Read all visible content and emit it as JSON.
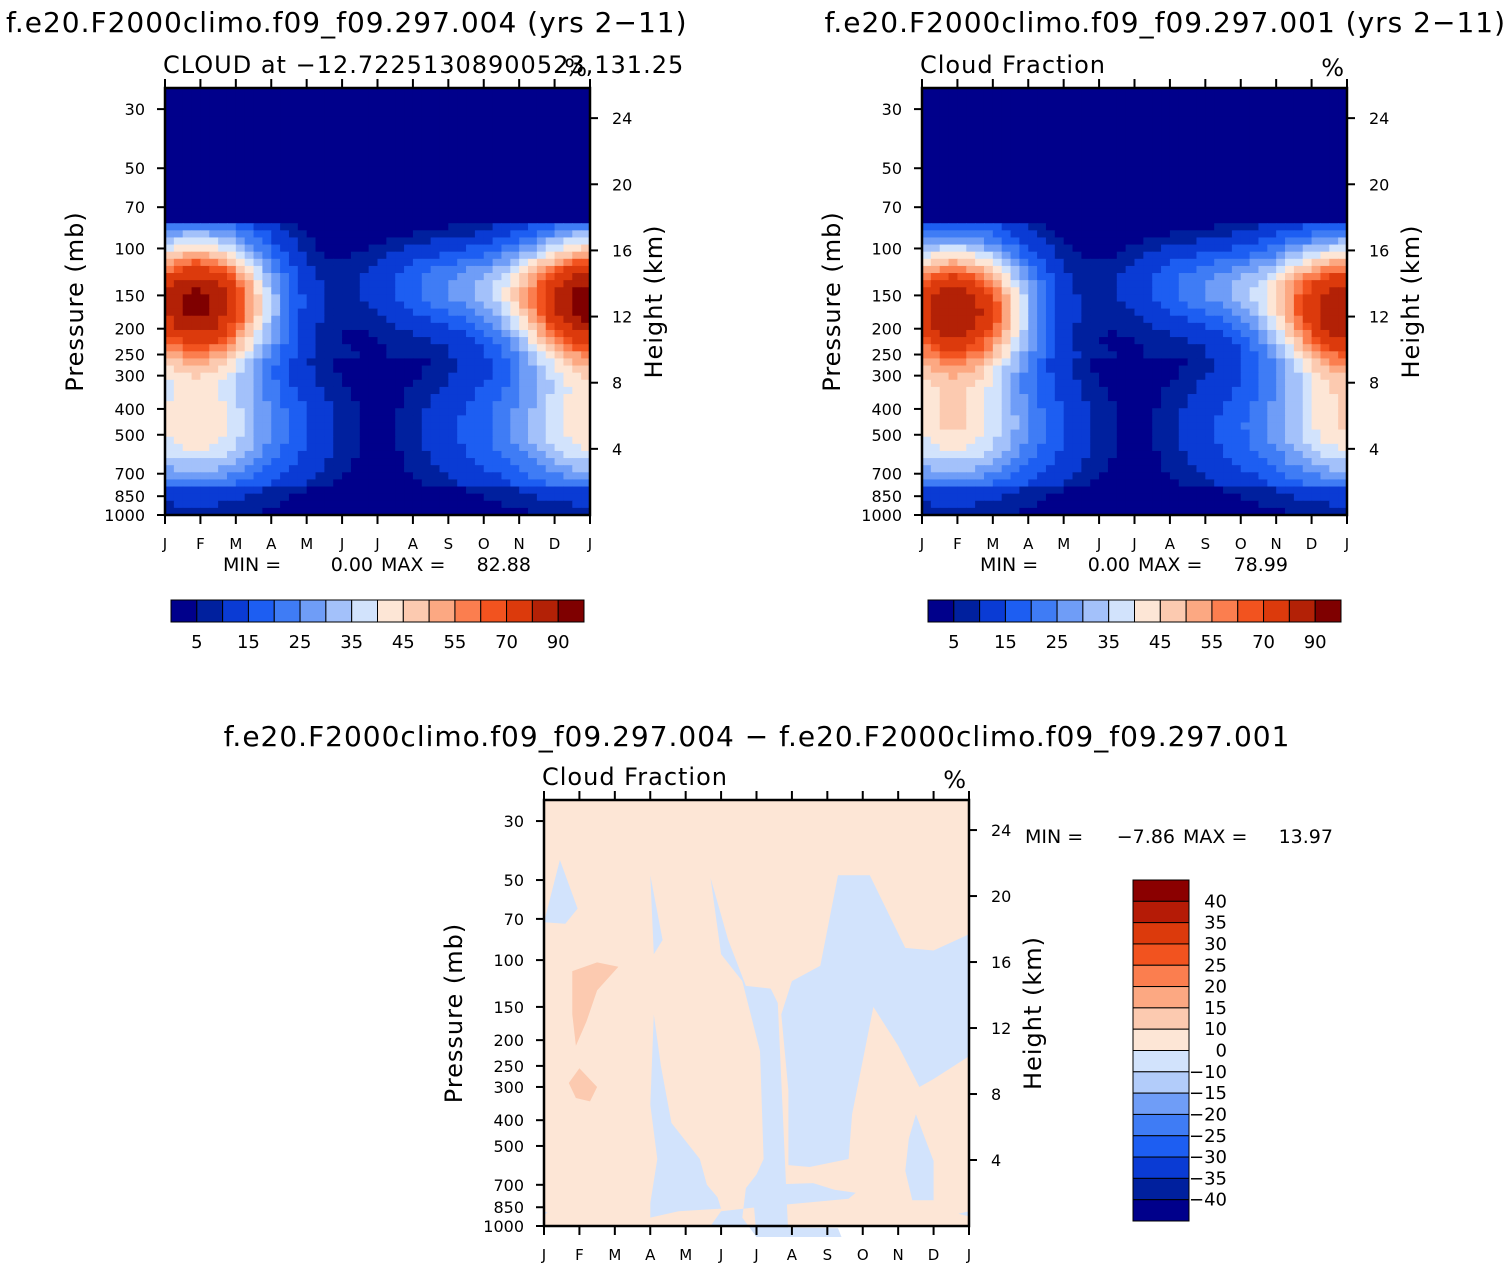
{
  "chart_data": [
    {
      "type": "heatmap",
      "suptitle": "f.e20.F2000climo.f09_f09.297.004 (yrs 2−11)",
      "title": "CLOUD at −12.72251308900523,131.25",
      "units": "%",
      "xlabel": "",
      "ylabel": "Pressure (mb)",
      "ylabel_right": "Height (km)",
      "x": [
        "J",
        "F",
        "M",
        "A",
        "M",
        "J",
        "J",
        "A",
        "S",
        "O",
        "N",
        "D",
        "J"
      ],
      "y_ticks": [
        30,
        50,
        70,
        100,
        150,
        200,
        250,
        300,
        400,
        500,
        700,
        850,
        1000
      ],
      "y_right_ticks": [
        24,
        20,
        16,
        12,
        8,
        4
      ],
      "ylim": [
        1000,
        25
      ],
      "stats": {
        "min_label": "MIN =",
        "min": "0.00",
        "max_label": "MAX =",
        "max": "82.88"
      },
      "colorbar": {
        "orientation": "horizontal",
        "labels": [
          "5",
          "15",
          "25",
          "35",
          "45",
          "55",
          "70",
          "90"
        ],
        "colors": [
          "#00008b",
          "#00209e",
          "#0a3bd4",
          "#1d5ef2",
          "#3f7cf5",
          "#6f9df7",
          "#a3c1fa",
          "#d2e3fc",
          "#fde6d6",
          "#fccab0",
          "#fca882",
          "#fb7e4f",
          "#f2531f",
          "#dc3a0c",
          "#b32106",
          "#7f0000"
        ]
      },
      "profile": {
        "peak_months": [
          1,
          12
        ],
        "peak_value": 82.88,
        "peak_p": 160
      }
    },
    {
      "type": "heatmap",
      "suptitle": "f.e20.F2000climo.f09_f09.297.001 (yrs 2−11)",
      "title": "Cloud Fraction",
      "units": "%",
      "xlabel": "",
      "ylabel": "Pressure (mb)",
      "ylabel_right": "Height (km)",
      "x": [
        "J",
        "F",
        "M",
        "A",
        "M",
        "J",
        "J",
        "A",
        "S",
        "O",
        "N",
        "D",
        "J"
      ],
      "y_ticks": [
        30,
        50,
        70,
        100,
        150,
        200,
        250,
        300,
        400,
        500,
        700,
        850,
        1000
      ],
      "y_right_ticks": [
        24,
        20,
        16,
        12,
        8,
        4
      ],
      "ylim": [
        1000,
        25
      ],
      "stats": {
        "min_label": "MIN =",
        "min": "0.00",
        "max_label": "MAX =",
        "max": "78.99"
      },
      "colorbar": {
        "orientation": "horizontal",
        "labels": [
          "5",
          "15",
          "25",
          "35",
          "45",
          "55",
          "70",
          "90"
        ],
        "colors": [
          "#00008b",
          "#00209e",
          "#0a3bd4",
          "#1d5ef2",
          "#3f7cf5",
          "#6f9df7",
          "#a3c1fa",
          "#d2e3fc",
          "#fde6d6",
          "#fccab0",
          "#fca882",
          "#fb7e4f",
          "#f2531f",
          "#dc3a0c",
          "#b32106",
          "#7f0000"
        ]
      },
      "profile": {
        "peak_months": [
          1,
          12
        ],
        "peak_value": 78.99,
        "peak_p": 170
      }
    },
    {
      "type": "heatmap",
      "suptitle": "f.e20.F2000climo.f09_f09.297.004 − f.e20.F2000climo.f09_f09.297.001",
      "title": "Cloud Fraction",
      "units": "%",
      "xlabel": "",
      "ylabel": "Pressure (mb)",
      "ylabel_right": "Height (km)",
      "x": [
        "J",
        "F",
        "M",
        "A",
        "M",
        "J",
        "J",
        "A",
        "S",
        "O",
        "N",
        "D",
        "J"
      ],
      "y_ticks": [
        30,
        50,
        70,
        100,
        150,
        200,
        250,
        300,
        400,
        500,
        700,
        850,
        1000
      ],
      "y_right_ticks": [
        24,
        20,
        16,
        12,
        8,
        4
      ],
      "ylim": [
        1000,
        25
      ],
      "stats": {
        "min_label": "MIN =",
        "min": "−7.86",
        "max_label": "MAX =",
        "max": "13.97"
      },
      "colorbar": {
        "orientation": "vertical",
        "labels": [
          "40",
          "35",
          "30",
          "25",
          "20",
          "15",
          "10",
          "0",
          "−10",
          "−15",
          "−20",
          "−25",
          "−30",
          "−35",
          "−40"
        ],
        "colors": [
          "#8b0000",
          "#b51b06",
          "#dc3a0c",
          "#f2531f",
          "#fb7e4f",
          "#fca882",
          "#fccab0",
          "#fde6d6",
          "#d2e3fc",
          "#b2ccfa",
          "#6f9df7",
          "#3f7cf5",
          "#1d5ef2",
          "#0a3bd4",
          "#00209e",
          "#00008b"
        ]
      },
      "regions": {
        "positive_color": "#fde6d6",
        "negative_color": "#d2e3fc",
        "strong_positive_color": "#fccab0"
      }
    }
  ]
}
